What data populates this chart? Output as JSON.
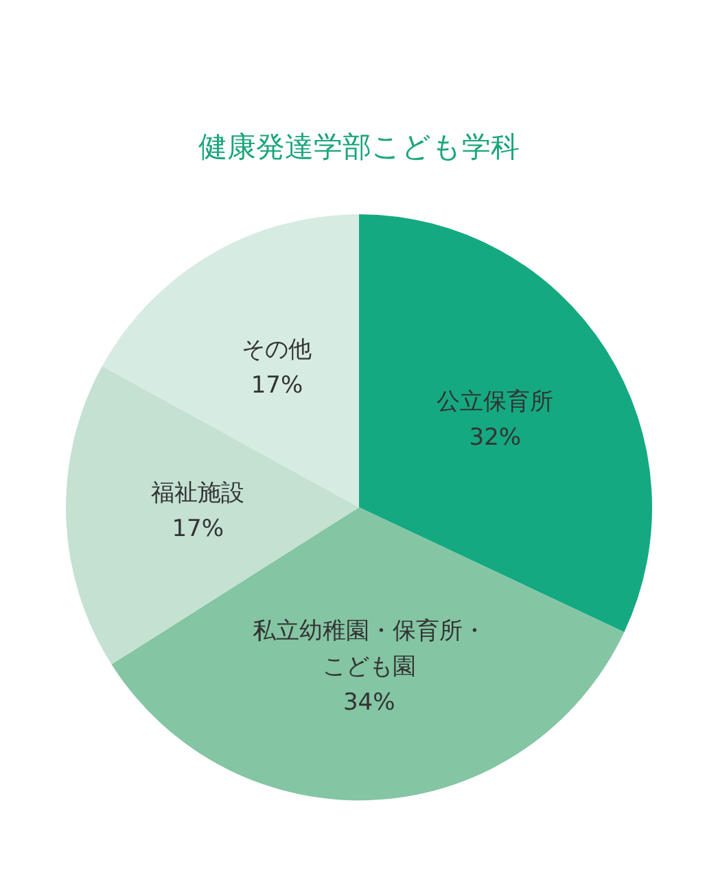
{
  "chart_data": {
    "type": "pie",
    "title": "健康発達学部こども学科",
    "categories": [
      "公立保育所",
      "私立幼稚園・保育所・こども園",
      "福祉施設",
      "その他"
    ],
    "values": [
      32,
      34,
      17,
      17
    ],
    "value_labels": [
      "32%",
      "34%",
      "17%",
      "17%"
    ],
    "colors": [
      "#15a981",
      "#84c5a3",
      "#c4e1d2",
      "#d6ebe1"
    ],
    "legend": false
  }
}
